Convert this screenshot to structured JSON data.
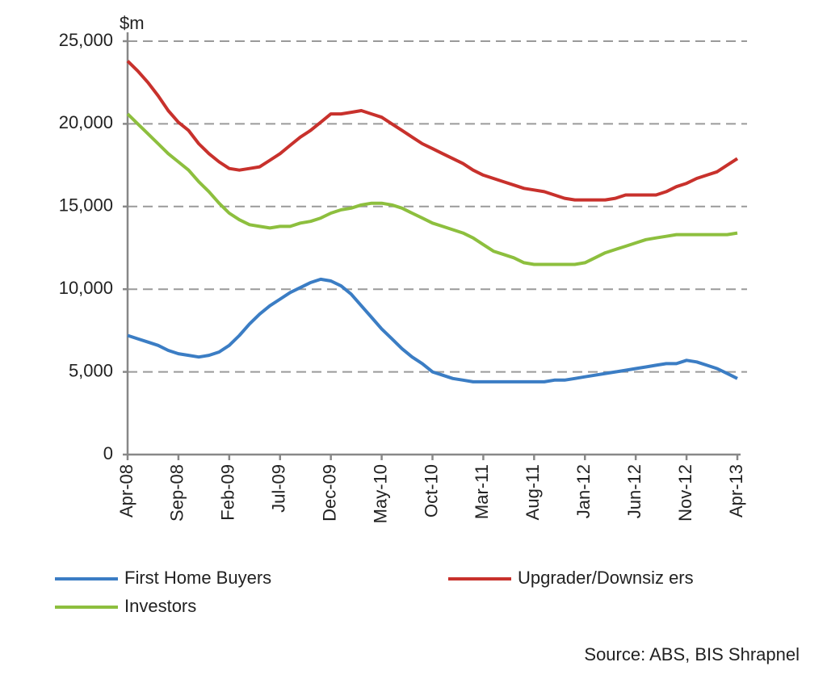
{
  "chart_data": {
    "type": "line",
    "y_unit": "$m",
    "categories": [
      "Apr-08",
      null,
      null,
      null,
      null,
      "Sep-08",
      null,
      null,
      null,
      null,
      "Feb-09",
      null,
      null,
      null,
      null,
      "Jul-09",
      null,
      null,
      null,
      null,
      "Dec-09",
      null,
      null,
      null,
      null,
      "May-10",
      null,
      null,
      null,
      null,
      "Oct-10",
      null,
      null,
      null,
      null,
      "Mar-11",
      null,
      null,
      null,
      null,
      "Aug-11",
      null,
      null,
      null,
      null,
      "Jan-12",
      null,
      null,
      null,
      null,
      "Jun-12",
      null,
      null,
      null,
      null,
      "Nov-12",
      null,
      null,
      null,
      null,
      "Apr-13"
    ],
    "series": [
      {
        "name": "First Home Buyers",
        "color": "#3b7dc4",
        "values": [
          7200,
          7000,
          6800,
          6600,
          6300,
          6100,
          6000,
          5900,
          6000,
          6200,
          6600,
          7200,
          7900,
          8500,
          9000,
          9400,
          9800,
          10100,
          10400,
          10600,
          10500,
          10200,
          9700,
          9000,
          8300,
          7600,
          7000,
          6400,
          5900,
          5500,
          5000,
          4800,
          4600,
          4500,
          4400,
          4400,
          4400,
          4400,
          4400,
          4400,
          4400,
          4400,
          4500,
          4500,
          4600,
          4700,
          4800,
          4900,
          5000,
          5100,
          5200,
          5300,
          5400,
          5500,
          5500,
          5700,
          5600,
          5400,
          5200,
          4900,
          4600
        ]
      },
      {
        "name": "Upgrader/Downsiz ers",
        "color": "#c8312c",
        "values": [
          23800,
          23200,
          22500,
          21700,
          20800,
          20100,
          19600,
          18800,
          18200,
          17700,
          17300,
          17200,
          17300,
          17400,
          17800,
          18200,
          18700,
          19200,
          19600,
          20100,
          20600,
          20600,
          20700,
          20800,
          20600,
          20400,
          20000,
          19600,
          19200,
          18800,
          18500,
          18200,
          17900,
          17600,
          17200,
          16900,
          16700,
          16500,
          16300,
          16100,
          16000,
          15900,
          15700,
          15500,
          15400,
          15400,
          15400,
          15400,
          15500,
          15700,
          15700,
          15700,
          15700,
          15900,
          16200,
          16400,
          16700,
          16900,
          17100,
          17500,
          17900
        ]
      },
      {
        "name": "Investors",
        "color": "#8dbf3e",
        "values": [
          20600,
          20000,
          19400,
          18800,
          18200,
          17700,
          17200,
          16500,
          15900,
          15200,
          14600,
          14200,
          13900,
          13800,
          13700,
          13800,
          13800,
          14000,
          14100,
          14300,
          14600,
          14800,
          14900,
          15100,
          15200,
          15200,
          15100,
          14900,
          14600,
          14300,
          14000,
          13800,
          13600,
          13400,
          13100,
          12700,
          12300,
          12100,
          11900,
          11600,
          11500,
          11500,
          11500,
          11500,
          11500,
          11600,
          11900,
          12200,
          12400,
          12600,
          12800,
          13000,
          13100,
          13200,
          13300,
          13300,
          13300,
          13300,
          13300,
          13300,
          13400
        ]
      }
    ],
    "ylim": [
      0,
      25000
    ],
    "yticks": [
      0,
      {
        "value": 5000,
        "label": "5,000"
      },
      {
        "value": 10000,
        "label": "10,000"
      },
      {
        "value": 15000,
        "label": "15,000"
      },
      {
        "value": 20000,
        "label": "20,000"
      },
      {
        "value": 25000,
        "label": "25,000"
      }
    ],
    "grid": true,
    "source": "Source: ABS, BIS Shrapnel"
  }
}
